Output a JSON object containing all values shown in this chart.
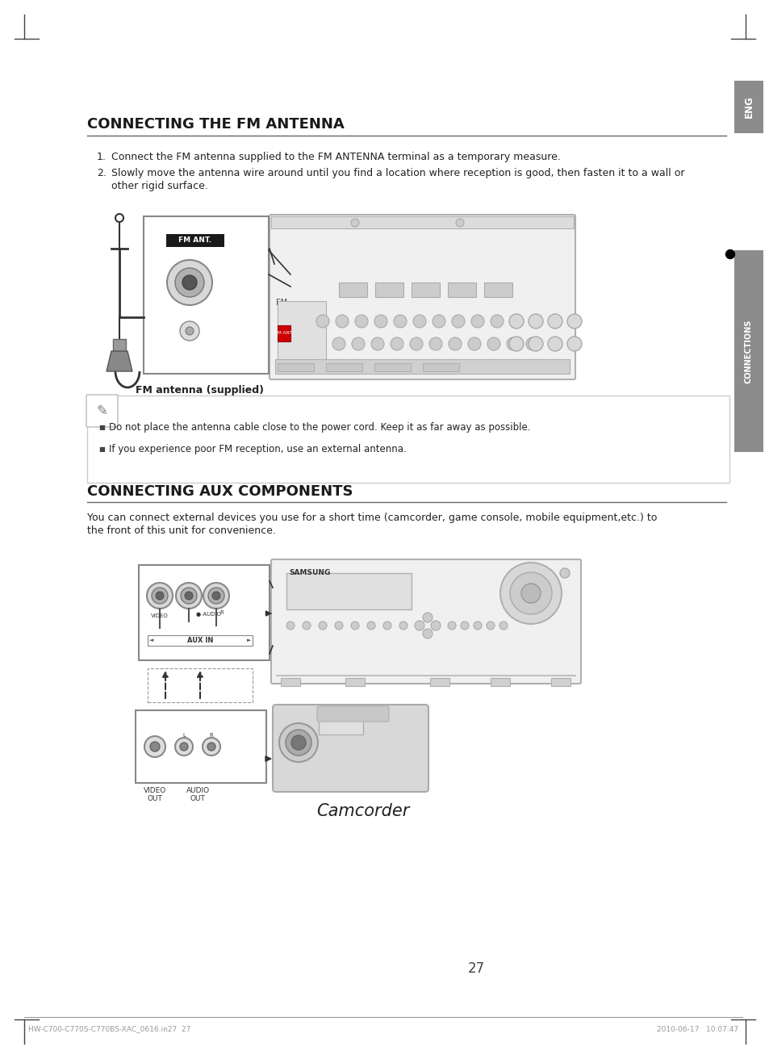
{
  "page_bg": "#ffffff",
  "section1_title": "CONNECTING THE FM ANTENNA",
  "bullet1": "Connect the FM antenna supplied to the FM ANTENNA terminal as a temporary measure.",
  "bullet2a": "Slowly move the antenna wire around until you find a location where reception is good, then fasten it to a wall or",
  "bullet2b": "other rigid surface.",
  "fm_antenna_label": "FM antenna (supplied)",
  "note1": "Do not place the antenna cable close to the power cord. Keep it as far away as possible.",
  "note2": "If you experience poor FM reception, use an external antenna.",
  "section2_title": "CONNECTING AUX COMPONENTS",
  "section2_body1": "You can connect external devices you use for a short time (camcorder, game console, mobile equipment,etc.) to",
  "section2_body2": "the front of this unit for convenience.",
  "camcorder_label": "Camcorder",
  "eng_tab_text": "ENG",
  "connections_tab_text": "CONNECTIONS",
  "page_number": "27",
  "footer_left": "HW-C700-C770S-C770BS-XAC_0616.in27  27",
  "footer_right": "2010-06-17   10:07:47",
  "gray_tab": "#8c8c8c",
  "dark_text": "#222222",
  "mid_text": "#555555",
  "light_gray": "#cccccc",
  "panel_gray": "#e8e8e8",
  "border_gray": "#aaaaaa"
}
